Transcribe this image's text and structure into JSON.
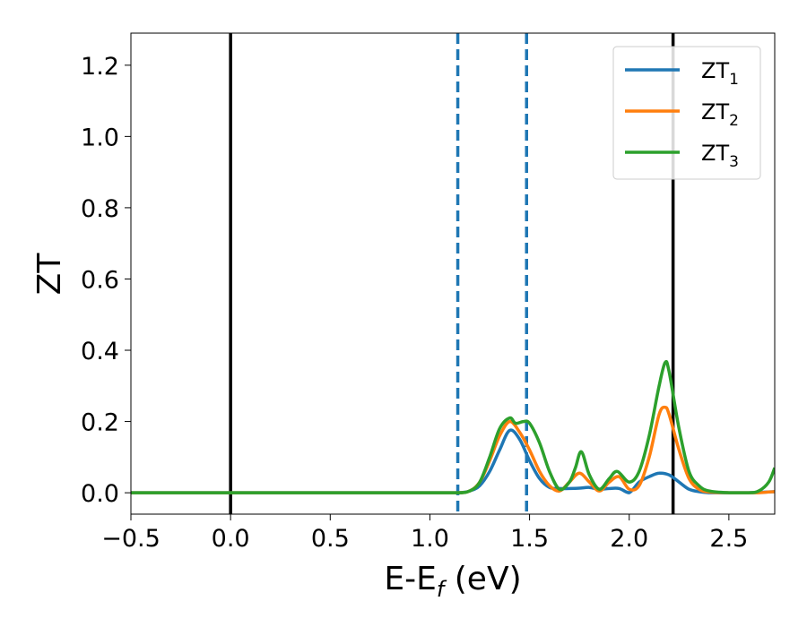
{
  "chart_data": {
    "type": "line",
    "xlabel": {
      "main": "E-E",
      "sub": "f",
      "rest": " (eV)"
    },
    "ylabel": "ZT",
    "xlim": [
      -0.5,
      2.73
    ],
    "ylim": [
      -0.06,
      1.29
    ],
    "xticks": [
      -0.5,
      0.0,
      0.5,
      1.0,
      1.5,
      2.0,
      2.5
    ],
    "xtick_labels": [
      "−0.5",
      "0.0",
      "0.5",
      "1.0",
      "1.5",
      "2.0",
      "2.5"
    ],
    "yticks": [
      0.0,
      0.2,
      0.4,
      0.6,
      0.8,
      1.0,
      1.2
    ],
    "ytick_labels": [
      "0.0",
      "0.2",
      "0.4",
      "0.6",
      "0.8",
      "1.0",
      "1.2"
    ],
    "grid": false,
    "legend_position": "top-right",
    "vertical_lines": [
      {
        "x": 0.0,
        "style": "solid",
        "color": "#000000"
      },
      {
        "x": 2.22,
        "style": "solid",
        "color": "#000000"
      },
      {
        "x": 1.14,
        "style": "dashed",
        "color": "#1f77b4"
      },
      {
        "x": 1.485,
        "style": "dashed",
        "color": "#1f77b4"
      }
    ],
    "series": [
      {
        "name": "ZT",
        "subscript": "1",
        "color": "#1f77b4",
        "x": [
          -0.5,
          1.0,
          1.14,
          1.2,
          1.25,
          1.3,
          1.35,
          1.4,
          1.45,
          1.5,
          1.55,
          1.6,
          1.65,
          1.7,
          1.75,
          1.8,
          1.85,
          1.9,
          1.95,
          2.0,
          2.05,
          2.1,
          2.15,
          2.2,
          2.25,
          2.3,
          2.35,
          2.4,
          2.5,
          2.6,
          2.73
        ],
        "y": [
          0,
          0,
          0,
          0.005,
          0.02,
          0.06,
          0.12,
          0.175,
          0.15,
          0.09,
          0.04,
          0.015,
          0.012,
          0.012,
          0.013,
          0.015,
          0.01,
          0.012,
          0.012,
          0.0,
          0.03,
          0.045,
          0.055,
          0.05,
          0.03,
          0.01,
          0.003,
          0.0,
          0.0,
          0.0,
          0.003
        ]
      },
      {
        "name": "ZT",
        "subscript": "2",
        "color": "#ff7f0e",
        "x": [
          -0.5,
          1.0,
          1.14,
          1.2,
          1.25,
          1.3,
          1.35,
          1.4,
          1.45,
          1.5,
          1.55,
          1.6,
          1.65,
          1.7,
          1.75,
          1.8,
          1.85,
          1.9,
          1.95,
          2.0,
          2.05,
          2.1,
          2.15,
          2.18,
          2.2,
          2.25,
          2.3,
          2.35,
          2.4,
          2.5,
          2.6,
          2.65,
          2.7,
          2.73
        ],
        "y": [
          0,
          0,
          0,
          0.005,
          0.03,
          0.09,
          0.16,
          0.2,
          0.17,
          0.12,
          0.06,
          0.02,
          0.005,
          0.03,
          0.055,
          0.03,
          0.005,
          0.03,
          0.045,
          0.01,
          0.02,
          0.1,
          0.22,
          0.24,
          0.22,
          0.12,
          0.04,
          0.01,
          0.002,
          0.0,
          0.0,
          0.0,
          0.002,
          0.003
        ]
      },
      {
        "name": "ZT",
        "subscript": "3",
        "color": "#2ca02c",
        "x": [
          -0.5,
          1.0,
          1.14,
          1.2,
          1.25,
          1.3,
          1.35,
          1.4,
          1.43,
          1.47,
          1.5,
          1.55,
          1.6,
          1.65,
          1.7,
          1.73,
          1.76,
          1.8,
          1.85,
          1.9,
          1.94,
          2.0,
          2.05,
          2.1,
          2.15,
          2.18,
          2.2,
          2.25,
          2.3,
          2.35,
          2.4,
          2.5,
          2.6,
          2.65,
          2.7,
          2.73
        ],
        "y": [
          0,
          0,
          0,
          0.005,
          0.03,
          0.1,
          0.18,
          0.21,
          0.195,
          0.2,
          0.195,
          0.14,
          0.06,
          0.01,
          0.03,
          0.07,
          0.115,
          0.05,
          0.01,
          0.04,
          0.06,
          0.03,
          0.06,
          0.16,
          0.3,
          0.365,
          0.34,
          0.18,
          0.06,
          0.02,
          0.005,
          0.0,
          0.0,
          0.005,
          0.03,
          0.07
        ]
      }
    ]
  }
}
